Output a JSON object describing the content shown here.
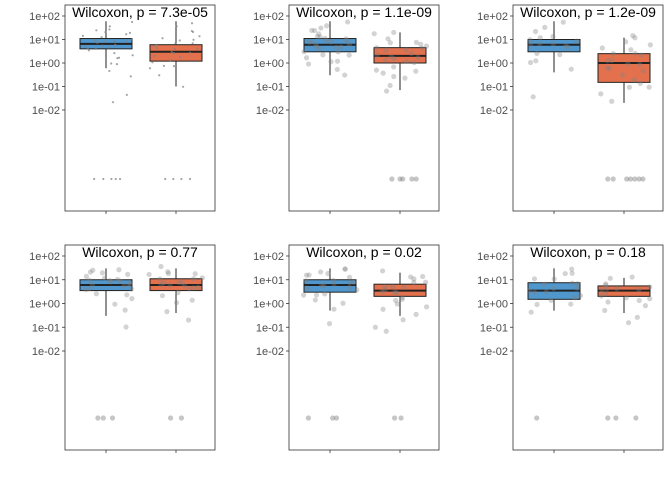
{
  "chart_data": {
    "type": "boxplot",
    "y_scale": "log10",
    "y_ticks": [
      "1e+02",
      "1e+01",
      "1e+00",
      "1e-01",
      "1e-02"
    ],
    "colors": {
      "group_a": "#4f97cc",
      "group_b": "#e4714d",
      "points": "#808080"
    },
    "panels": [
      {
        "title": "Wilcoxon, p = 7.3e-05",
        "point_style": "small",
        "groups": [
          {
            "q1": 4,
            "median": 6.5,
            "q3": 11,
            "whisker_low": 0.6,
            "whisker_high": 60,
            "points": [
              0.05,
              0.3,
              0.5,
              0.8,
              1,
              1.5,
              2,
              2.5,
              3,
              3,
              4,
              4,
              5,
              5,
              6,
              6,
              7,
              7,
              8,
              8,
              9,
              10,
              10,
              12,
              14,
              16,
              18,
              20,
              25,
              30,
              40,
              55,
              0.02
            ]
          },
          {
            "q1": 1.2,
            "median": 3,
            "q3": 6,
            "whisker_low": 0.1,
            "whisker_high": 60,
            "points": [
              0.1,
              0.3,
              0.5,
              0.7,
              0.9,
              1,
              1.3,
              1.6,
              2,
              2.5,
              3,
              3,
              3.5,
              4,
              4.5,
              5,
              6,
              7,
              8,
              9,
              10,
              12,
              14,
              18,
              25,
              35,
              50
            ]
          }
        ],
        "zeros": [
          [
            0.28,
            0.45,
            0.6,
            0.68,
            0.76
          ],
          [
            0.3,
            0.45,
            0.6,
            0.76
          ]
        ]
      },
      {
        "title": "Wilcoxon, p = 1.1e-09",
        "point_style": "large",
        "groups": [
          {
            "q1": 3,
            "median": 6,
            "q3": 11,
            "whisker_low": 0.3,
            "whisker_high": 60,
            "points": [
              0.3,
              0.5,
              0.8,
              1,
              1.3,
              1.6,
              2,
              2.5,
              3,
              3.5,
              4,
              4.5,
              5,
              5.5,
              6,
              6.5,
              7,
              7.5,
              8,
              9,
              10,
              11,
              12,
              14,
              16,
              18,
              20,
              25,
              30,
              40,
              50
            ]
          },
          {
            "q1": 1,
            "median": 2,
            "q3": 4.5,
            "whisker_low": 0.07,
            "whisker_high": 20,
            "points": [
              0.07,
              0.12,
              0.2,
              0.3,
              0.4,
              0.5,
              0.6,
              0.8,
              1,
              1.2,
              1.4,
              1.6,
              1.8,
              2,
              2.2,
              2.5,
              3,
              3.5,
              4,
              4.5,
              5,
              6,
              7,
              9,
              12,
              16,
              20
            ]
          }
        ],
        "zeros": [
          [],
          [
            0.35,
            0.5,
            0.55,
            0.72,
            0.8
          ]
        ]
      },
      {
        "title": "Wilcoxon, p = 1.2e-09",
        "point_style": "large",
        "groups": [
          {
            "q1": 3,
            "median": 6,
            "q3": 10,
            "whisker_low": 0.4,
            "whisker_high": 60,
            "points": [
              0.03,
              0.5,
              1,
              1.5,
              2,
              3,
              4,
              5,
              6,
              7,
              8,
              9,
              10,
              12,
              15,
              20,
              30,
              50
            ]
          },
          {
            "q1": 0.15,
            "median": 1,
            "q3": 2.5,
            "whisker_low": 0.02,
            "whisker_high": 12,
            "points": [
              0.02,
              0.05,
              0.08,
              0.1,
              0.15,
              0.2,
              0.3,
              0.4,
              0.5,
              0.6,
              0.8,
              1,
              1.2,
              1.5,
              2,
              2.5,
              3,
              4,
              5,
              6,
              8,
              10,
              12
            ]
          }
        ],
        "zeros": [
          [],
          [
            0.2,
            0.3,
            0.55,
            0.62,
            0.7,
            0.78,
            0.85
          ]
        ]
      },
      {
        "title": "Wilcoxon, p = 0.77",
        "point_style": "large",
        "groups": [
          {
            "q1": 3.5,
            "median": 6,
            "q3": 10,
            "whisker_low": 0.3,
            "whisker_high": 30,
            "points": [
              0.12,
              0.5,
              1,
              1.5,
              2,
              3,
              3.5,
              4,
              5,
              5.5,
              6,
              6.5,
              7,
              7.5,
              8,
              9,
              10,
              11,
              12,
              14,
              16,
              18,
              20,
              25,
              30
            ]
          },
          {
            "q1": 3.5,
            "median": 6,
            "q3": 11,
            "whisker_low": 0.4,
            "whisker_high": 30,
            "points": [
              0.2,
              0.5,
              1,
              1.5,
              2,
              3,
              4,
              4.5,
              5,
              5.5,
              6,
              6.5,
              7,
              8,
              9,
              10,
              11,
              12,
              14,
              16,
              20,
              25,
              30
            ]
          }
        ],
        "zeros": [
          [
            0.35,
            0.45,
            0.62
          ],
          [
            0.4,
            0.6
          ]
        ]
      },
      {
        "title": "Wilcoxon, p = 0.02",
        "point_style": "large",
        "groups": [
          {
            "q1": 3,
            "median": 6,
            "q3": 10,
            "whisker_low": 0.5,
            "whisker_high": 30,
            "points": [
              0.12,
              0.5,
              1,
              1.5,
              2,
              2.5,
              3,
              3.5,
              4,
              5,
              5.5,
              6,
              6.5,
              7,
              8,
              9,
              10,
              12,
              14,
              16,
              18,
              20,
              25,
              30
            ]
          },
          {
            "q1": 2,
            "median": 3.5,
            "q3": 6.5,
            "whisker_low": 0.3,
            "whisker_high": 20,
            "points": [
              0.08,
              0.12,
              0.2,
              0.3,
              0.5,
              0.8,
              1,
              1.3,
              1.6,
              2,
              2.5,
              3,
              3.5,
              4,
              4.5,
              5,
              6,
              7,
              8,
              10,
              12,
              15,
              20
            ]
          }
        ],
        "zeros": [
          [
            0.1,
            0.55,
            0.62
          ],
          [
            0.4,
            0.52
          ]
        ]
      },
      {
        "title": "Wilcoxon, p = 0.18",
        "point_style": "large",
        "groups": [
          {
            "q1": 1.5,
            "median": 3.5,
            "q3": 7.5,
            "whisker_low": 0.5,
            "whisker_high": 30,
            "points": [
              0.5,
              0.8,
              1,
              1.3,
              1.6,
              2,
              2.5,
              3,
              3.5,
              4,
              5,
              6,
              7,
              8,
              10,
              12,
              15,
              20,
              30
            ]
          },
          {
            "q1": 2,
            "median": 3.5,
            "q3": 5.5,
            "whisker_low": 0.4,
            "whisker_high": 12,
            "points": [
              0.15,
              0.3,
              0.5,
              0.8,
              1,
              1.3,
              1.6,
              2,
              2.5,
              3,
              3.5,
              4,
              4.5,
              5,
              6,
              7,
              8,
              10,
              12
            ]
          }
        ],
        "zeros": [
          [
            0.18
          ],
          [
            0.2,
            0.35,
            0.72
          ]
        ]
      }
    ]
  }
}
